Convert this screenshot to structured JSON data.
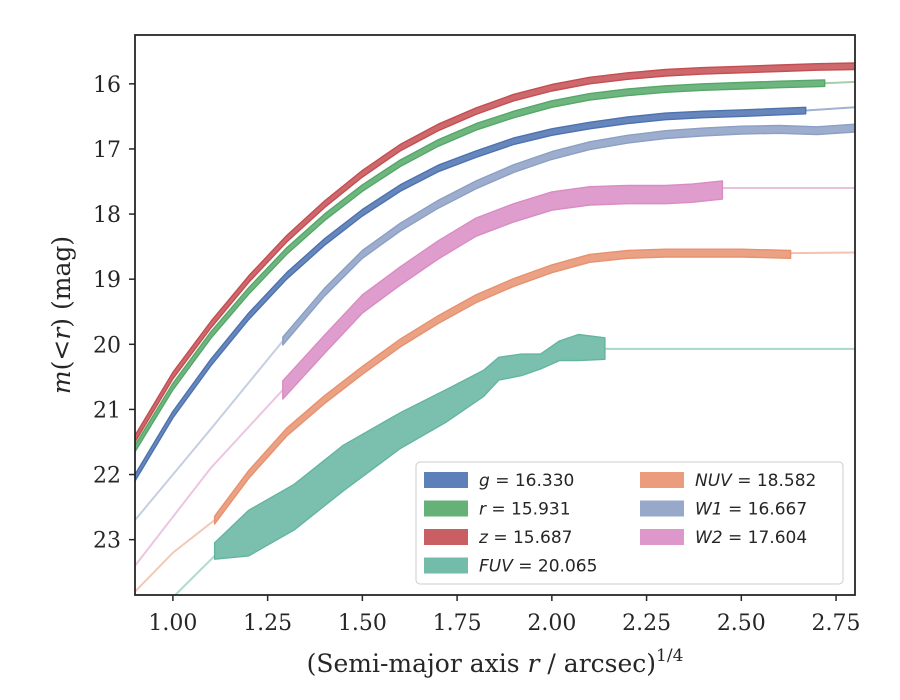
{
  "chart_data": {
    "type": "line",
    "xlabel": "(Semi-major axis r / arcsec)^1/4",
    "xlabel_parts": {
      "pre": "(Semi-major axis ",
      "var": "r",
      "mid": " / arcsec)",
      "exp": "1/4"
    },
    "ylabel": "m(<r) (mag)",
    "ylabel_parts": {
      "m": "m",
      "open": "(",
      "lt": "<",
      "r": "r",
      "rest": ") (mag)"
    },
    "xlim": [
      0.9,
      2.8
    ],
    "ylim": [
      23.85,
      15.25
    ],
    "y_inverted": true,
    "grid": false,
    "legend_position": "lower-right",
    "x_ticks": [
      "1.00",
      "1.25",
      "1.50",
      "1.75",
      "2.00",
      "2.25",
      "2.50",
      "2.75"
    ],
    "y_ticks": [
      "16",
      "17",
      "18",
      "19",
      "20",
      "21",
      "22",
      "23"
    ],
    "series": [
      {
        "key": "g",
        "label": "g = 16.330",
        "color": "#4c72b0",
        "band_width": 0.05,
        "x": [
          0.9,
          1.0,
          1.1,
          1.2,
          1.3,
          1.4,
          1.5,
          1.6,
          1.7,
          1.8,
          1.9,
          2.0,
          2.1,
          2.2,
          2.3,
          2.4,
          2.5,
          2.67
        ],
        "y": [
          22.05,
          21.08,
          20.28,
          19.57,
          18.95,
          18.43,
          17.98,
          17.6,
          17.3,
          17.08,
          16.88,
          16.74,
          16.64,
          16.56,
          16.5,
          16.47,
          16.45,
          16.41
        ],
        "ext_x": [
          2.67,
          2.8
        ],
        "ext_y": [
          16.41,
          16.36
        ]
      },
      {
        "key": "r",
        "label": "r = 15.931",
        "color": "#55a868",
        "band_width": 0.05,
        "x": [
          0.9,
          1.0,
          1.1,
          1.2,
          1.3,
          1.4,
          1.5,
          1.6,
          1.7,
          1.8,
          1.9,
          2.0,
          2.1,
          2.2,
          2.3,
          2.4,
          2.5,
          2.6,
          2.72
        ],
        "y": [
          21.6,
          20.65,
          19.86,
          19.18,
          18.57,
          18.05,
          17.6,
          17.22,
          16.91,
          16.66,
          16.47,
          16.31,
          16.2,
          16.13,
          16.08,
          16.05,
          16.03,
          16.01,
          15.99
        ],
        "ext_x": [
          2.72,
          2.8
        ],
        "ext_y": [
          15.99,
          15.97
        ]
      },
      {
        "key": "z",
        "label": "z = 15.687",
        "color": "#c44e52",
        "band_width": 0.05,
        "x": [
          0.9,
          1.0,
          1.1,
          1.2,
          1.3,
          1.4,
          1.5,
          1.6,
          1.7,
          1.8,
          1.9,
          2.0,
          2.1,
          2.2,
          2.3,
          2.4,
          2.5,
          2.6,
          2.7,
          2.8
        ],
        "y": [
          21.45,
          20.48,
          19.7,
          19.0,
          18.38,
          17.85,
          17.38,
          16.98,
          16.67,
          16.42,
          16.21,
          16.06,
          15.95,
          15.88,
          15.83,
          15.8,
          15.78,
          15.76,
          15.74,
          15.73
        ],
        "ext_x": [],
        "ext_y": []
      },
      {
        "key": "FUV",
        "label": "FUV = 20.065",
        "color": "#64b5a0",
        "x": [
          1.11,
          1.2,
          1.32,
          1.45,
          1.6,
          1.72,
          1.82,
          1.86,
          1.92,
          1.97,
          2.02,
          2.07,
          2.14
        ],
        "y_low": [
          23.05,
          22.55,
          22.15,
          21.55,
          21.05,
          20.7,
          20.4,
          20.2,
          20.15,
          20.15,
          19.95,
          19.85,
          19.9
        ],
        "y_high": [
          23.3,
          23.25,
          22.85,
          22.25,
          21.6,
          21.2,
          20.8,
          20.55,
          20.48,
          20.38,
          20.25,
          20.25,
          20.23
        ],
        "ext_x": [
          2.14,
          2.8
        ],
        "ext_y": [
          20.07,
          20.07
        ],
        "pre_x": [
          0.98,
          1.11
        ],
        "pre_y": [
          24.0,
          23.25
        ]
      },
      {
        "key": "NUV",
        "label": "NUV = 18.582",
        "color": "#e8916f",
        "band_width": 0.06,
        "x": [
          1.11,
          1.2,
          1.3,
          1.4,
          1.5,
          1.6,
          1.7,
          1.8,
          1.9,
          2.0,
          2.1,
          2.2,
          2.3,
          2.4,
          2.5,
          2.63
        ],
        "y": [
          22.7,
          22.0,
          21.35,
          20.85,
          20.4,
          19.98,
          19.62,
          19.3,
          19.05,
          18.84,
          18.68,
          18.62,
          18.6,
          18.6,
          18.6,
          18.62
        ],
        "ext_x": [
          2.63,
          2.8
        ],
        "ext_y": [
          18.6,
          18.59
        ],
        "pre_x": [
          0.9,
          1.0,
          1.11
        ],
        "pre_y": [
          23.8,
          23.2,
          22.7
        ]
      },
      {
        "key": "W1",
        "label": "W1 = 16.667",
        "color": "#8c9fc4",
        "band_width": 0.06,
        "x": [
          1.29,
          1.4,
          1.5,
          1.6,
          1.7,
          1.8,
          1.9,
          2.0,
          2.1,
          2.2,
          2.3,
          2.4,
          2.5,
          2.6,
          2.7,
          2.8
        ],
        "y": [
          19.95,
          19.2,
          18.62,
          18.2,
          17.85,
          17.55,
          17.3,
          17.1,
          16.95,
          16.85,
          16.78,
          16.74,
          16.71,
          16.7,
          16.72,
          16.68
        ],
        "ext_x": [],
        "ext_y": [],
        "pre_x": [
          0.9,
          1.1,
          1.29
        ],
        "pre_y": [
          22.7,
          21.3,
          19.95
        ]
      },
      {
        "key": "W2",
        "label": "W2 = 17.604",
        "color": "#d98cc4",
        "band_width": 0.14,
        "x": [
          1.29,
          1.4,
          1.5,
          1.6,
          1.7,
          1.8,
          1.9,
          2.0,
          2.1,
          2.2,
          2.3,
          2.37,
          2.45
        ],
        "y": [
          20.7,
          20.0,
          19.38,
          18.95,
          18.55,
          18.2,
          17.98,
          17.8,
          17.72,
          17.7,
          17.7,
          17.68,
          17.63
        ],
        "ext_x": [
          2.45,
          2.8
        ],
        "ext_y": [
          17.6,
          17.6
        ],
        "pre_x": [
          0.9,
          1.1,
          1.29
        ],
        "pre_y": [
          23.4,
          21.9,
          20.7
        ]
      }
    ],
    "legend": [
      {
        "key": "g",
        "var": "g",
        "value": " = 16.330",
        "color": "#4c72b0"
      },
      {
        "key": "r",
        "var": "r",
        "value": " = 15.931",
        "color": "#55a868"
      },
      {
        "key": "z",
        "var": "z",
        "value": " = 15.687",
        "color": "#c44e52"
      },
      {
        "key": "FUV",
        "var": "FUV",
        "value": " = 20.065",
        "color": "#64b5a0"
      },
      {
        "key": "NUV",
        "var": "NUV",
        "value": " = 18.582",
        "color": "#e8916f"
      },
      {
        "key": "W1",
        "var": "W1",
        "value": " = 16.667",
        "color": "#8c9fc4"
      },
      {
        "key": "W2",
        "var": "W2",
        "value": " = 17.604",
        "color": "#d98cc4"
      }
    ]
  }
}
